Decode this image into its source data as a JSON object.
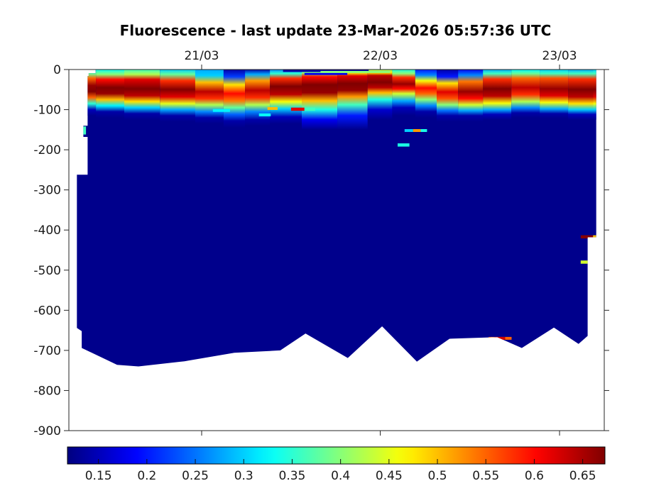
{
  "title": "Fluorescence - last update 23-Mar-2026 05:57:36 UTC",
  "chart_data": {
    "type": "heatmap",
    "title": "Fluorescence - last update 23-Mar-2026 05:57:36 UTC",
    "colormap": "jet",
    "grid": false,
    "x_axis": {
      "ticks": [
        {
          "label": "21/03",
          "f": 0.248
        },
        {
          "label": "22/03",
          "f": 0.5816
        },
        {
          "label": "23/03",
          "f": 0.9165
        }
      ],
      "tick_side": "top-and-bottom"
    },
    "y_axis": {
      "units": "m",
      "range": [
        -900,
        0
      ],
      "ticks": [
        {
          "label": "0",
          "d": 0
        },
        {
          "label": "-100",
          "d": 100
        },
        {
          "label": "-200",
          "d": 200
        },
        {
          "label": "-300",
          "d": 300
        },
        {
          "label": "-400",
          "d": 400
        },
        {
          "label": "-500",
          "d": 500
        },
        {
          "label": "-600",
          "d": 600
        },
        {
          "label": "-700",
          "d": 700
        },
        {
          "label": "-800",
          "d": 800
        },
        {
          "label": "-900",
          "d": 900
        }
      ]
    },
    "colorbar": {
      "orientation": "horizontal",
      "position": "bottom",
      "vmin": 0.118,
      "vmax": 0.673,
      "ticks": [
        0.15,
        0.2,
        0.25,
        0.3,
        0.35,
        0.4,
        0.45,
        0.5,
        0.55,
        0.6,
        0.65
      ]
    },
    "background_value": 0.125,
    "region_outline": [
      [
        0.05,
        0
      ],
      [
        0.985,
        0
      ],
      [
        0.985,
        418
      ],
      [
        0.969,
        418
      ],
      [
        0.969,
        664
      ],
      [
        0.952,
        684
      ],
      [
        0.906,
        643
      ],
      [
        0.846,
        694
      ],
      [
        0.8,
        667
      ],
      [
        0.711,
        671
      ],
      [
        0.65,
        728
      ],
      [
        0.585,
        640
      ],
      [
        0.521,
        719
      ],
      [
        0.442,
        658
      ],
      [
        0.395,
        700
      ],
      [
        0.309,
        706
      ],
      [
        0.216,
        727
      ],
      [
        0.13,
        740
      ],
      [
        0.09,
        736
      ],
      [
        0.024,
        694
      ],
      [
        0.024,
        652
      ],
      [
        0.015,
        644
      ],
      [
        0.015,
        262
      ],
      [
        0.035,
        262
      ],
      [
        0.035,
        168
      ],
      [
        0.027,
        168
      ],
      [
        0.027,
        140
      ],
      [
        0.035,
        140
      ],
      [
        0.035,
        16
      ],
      [
        0.037,
        16
      ],
      [
        0.037,
        9
      ],
      [
        0.05,
        9
      ]
    ],
    "profiles": [
      {
        "f": 0.031,
        "stops": [
          [
            0,
            0.3
          ],
          [
            10,
            0.38
          ],
          [
            22,
            0.55
          ],
          [
            40,
            0.66
          ],
          [
            55,
            0.68
          ],
          [
            70,
            0.55
          ],
          [
            85,
            0.35
          ],
          [
            100,
            0.15
          ],
          [
            115,
            0.125
          ]
        ]
      },
      {
        "f": 0.07,
        "stops": [
          [
            0,
            0.33
          ],
          [
            12,
            0.4
          ],
          [
            25,
            0.6
          ],
          [
            45,
            0.68
          ],
          [
            60,
            0.66
          ],
          [
            75,
            0.5
          ],
          [
            90,
            0.32
          ],
          [
            105,
            0.14
          ],
          [
            120,
            0.125
          ]
        ]
      },
      {
        "f": 0.137,
        "stops": [
          [
            0,
            0.36
          ],
          [
            12,
            0.42
          ],
          [
            25,
            0.62
          ],
          [
            48,
            0.68
          ],
          [
            65,
            0.64
          ],
          [
            80,
            0.48
          ],
          [
            95,
            0.3
          ],
          [
            110,
            0.14
          ],
          [
            125,
            0.125
          ]
        ]
      },
      {
        "f": 0.203,
        "stops": [
          [
            0,
            0.3
          ],
          [
            12,
            0.38
          ],
          [
            28,
            0.58
          ],
          [
            50,
            0.67
          ],
          [
            68,
            0.62
          ],
          [
            85,
            0.45
          ],
          [
            100,
            0.28
          ],
          [
            115,
            0.14
          ],
          [
            130,
            0.125
          ]
        ]
      },
      {
        "f": 0.269,
        "stops": [
          [
            0,
            0.28
          ],
          [
            15,
            0.3
          ],
          [
            32,
            0.5
          ],
          [
            55,
            0.64
          ],
          [
            72,
            0.58
          ],
          [
            88,
            0.42
          ],
          [
            105,
            0.26
          ],
          [
            120,
            0.14
          ],
          [
            135,
            0.125
          ]
        ]
      },
      {
        "f": 0.309,
        "stops": [
          [
            0,
            0.14
          ],
          [
            18,
            0.22
          ],
          [
            38,
            0.48
          ],
          [
            60,
            0.6
          ],
          [
            78,
            0.54
          ],
          [
            95,
            0.38
          ],
          [
            112,
            0.24
          ],
          [
            128,
            0.14
          ],
          [
            145,
            0.125
          ]
        ]
      },
      {
        "f": 0.349,
        "stops": [
          [
            0,
            0.14
          ],
          [
            12,
            0.28
          ],
          [
            28,
            0.52
          ],
          [
            52,
            0.64
          ],
          [
            70,
            0.58
          ],
          [
            88,
            0.42
          ],
          [
            105,
            0.26
          ],
          [
            125,
            0.14
          ],
          [
            140,
            0.125
          ]
        ]
      },
      {
        "f": 0.402,
        "stops": [
          [
            0,
            0.26
          ],
          [
            10,
            0.35
          ],
          [
            22,
            0.58
          ],
          [
            42,
            0.68
          ],
          [
            62,
            0.64
          ],
          [
            80,
            0.46
          ],
          [
            98,
            0.3
          ],
          [
            118,
            0.15
          ],
          [
            135,
            0.125
          ]
        ]
      },
      {
        "f": 0.468,
        "stops": [
          [
            0,
            0.33
          ],
          [
            8,
            0.4
          ],
          [
            18,
            0.6
          ],
          [
            38,
            0.68
          ],
          [
            58,
            0.66
          ],
          [
            78,
            0.5
          ],
          [
            100,
            0.34
          ],
          [
            125,
            0.18
          ],
          [
            150,
            0.125
          ]
        ]
      },
      {
        "f": 0.535,
        "stops": [
          [
            0,
            0.38
          ],
          [
            8,
            0.46
          ],
          [
            16,
            0.62
          ],
          [
            35,
            0.68
          ],
          [
            52,
            0.66
          ],
          [
            68,
            0.52
          ],
          [
            88,
            0.36
          ],
          [
            115,
            0.2
          ],
          [
            150,
            0.125
          ]
        ]
      },
      {
        "f": 0.581,
        "stops": [
          [
            0,
            0.4
          ],
          [
            8,
            0.48
          ],
          [
            15,
            0.64
          ],
          [
            32,
            0.68
          ],
          [
            45,
            0.64
          ],
          [
            58,
            0.5
          ],
          [
            75,
            0.34
          ],
          [
            100,
            0.16
          ],
          [
            125,
            0.125
          ]
        ]
      },
      {
        "f": 0.627,
        "stops": [
          [
            0,
            0.34
          ],
          [
            10,
            0.4
          ],
          [
            20,
            0.58
          ],
          [
            36,
            0.66
          ],
          [
            48,
            0.6
          ],
          [
            60,
            0.44
          ],
          [
            78,
            0.28
          ],
          [
            95,
            0.15
          ],
          [
            115,
            0.125
          ]
        ]
      },
      {
        "f": 0.667,
        "stops": [
          [
            0,
            0.2
          ],
          [
            14,
            0.26
          ],
          [
            28,
            0.46
          ],
          [
            46,
            0.6
          ],
          [
            60,
            0.55
          ],
          [
            75,
            0.4
          ],
          [
            90,
            0.26
          ],
          [
            105,
            0.14
          ],
          [
            120,
            0.125
          ]
        ]
      },
      {
        "f": 0.707,
        "stops": [
          [
            0,
            0.14
          ],
          [
            18,
            0.2
          ],
          [
            34,
            0.48
          ],
          [
            56,
            0.62
          ],
          [
            72,
            0.56
          ],
          [
            88,
            0.4
          ],
          [
            102,
            0.25
          ],
          [
            115,
            0.14
          ],
          [
            130,
            0.125
          ]
        ]
      },
      {
        "f": 0.747,
        "stops": [
          [
            0,
            0.18
          ],
          [
            14,
            0.26
          ],
          [
            30,
            0.54
          ],
          [
            55,
            0.66
          ],
          [
            72,
            0.6
          ],
          [
            88,
            0.44
          ],
          [
            102,
            0.28
          ],
          [
            115,
            0.14
          ],
          [
            130,
            0.125
          ]
        ]
      },
      {
        "f": 0.8,
        "stops": [
          [
            0,
            0.28
          ],
          [
            10,
            0.36
          ],
          [
            24,
            0.58
          ],
          [
            48,
            0.68
          ],
          [
            66,
            0.64
          ],
          [
            84,
            0.46
          ],
          [
            100,
            0.28
          ],
          [
            112,
            0.15
          ],
          [
            125,
            0.125
          ]
        ]
      },
      {
        "f": 0.853,
        "stops": [
          [
            0,
            0.32
          ],
          [
            10,
            0.38
          ],
          [
            22,
            0.55
          ],
          [
            45,
            0.64
          ],
          [
            62,
            0.58
          ],
          [
            80,
            0.42
          ],
          [
            95,
            0.26
          ],
          [
            108,
            0.14
          ],
          [
            120,
            0.125
          ]
        ]
      },
      {
        "f": 0.906,
        "stops": [
          [
            0,
            0.3
          ],
          [
            10,
            0.36
          ],
          [
            22,
            0.56
          ],
          [
            48,
            0.66
          ],
          [
            65,
            0.62
          ],
          [
            82,
            0.46
          ],
          [
            98,
            0.28
          ],
          [
            110,
            0.14
          ],
          [
            122,
            0.125
          ]
        ]
      },
      {
        "f": 0.959,
        "stops": [
          [
            0,
            0.28
          ],
          [
            10,
            0.36
          ],
          [
            24,
            0.58
          ],
          [
            50,
            0.68
          ],
          [
            68,
            0.64
          ],
          [
            85,
            0.48
          ],
          [
            100,
            0.3
          ],
          [
            112,
            0.15
          ],
          [
            125,
            0.125
          ]
        ]
      },
      {
        "f": 1.0,
        "stops": [
          [
            0,
            0.3
          ],
          [
            10,
            0.36
          ],
          [
            24,
            0.58
          ],
          [
            50,
            0.68
          ],
          [
            68,
            0.62
          ],
          [
            85,
            0.46
          ],
          [
            100,
            0.3
          ],
          [
            112,
            0.15
          ],
          [
            125,
            0.125
          ]
        ]
      }
    ],
    "streaks": [
      {
        "f1": 0.415,
        "f2": 0.44,
        "d": 99,
        "h": 8,
        "v": 0.62
      },
      {
        "f1": 0.44,
        "f2": 0.46,
        "d": 99,
        "h": 8,
        "v": 0.36
      },
      {
        "f1": 0.371,
        "f2": 0.39,
        "d": 97,
        "h": 7,
        "v": 0.5
      },
      {
        "f1": 0.355,
        "f2": 0.377,
        "d": 113,
        "h": 7,
        "v": 0.33
      },
      {
        "f1": 0.269,
        "f2": 0.301,
        "d": 102,
        "h": 7,
        "v": 0.32
      },
      {
        "f1": 0.627,
        "f2": 0.643,
        "d": 152,
        "h": 7,
        "v": 0.3
      },
      {
        "f1": 0.643,
        "f2": 0.657,
        "d": 152,
        "h": 7,
        "v": 0.52
      },
      {
        "f1": 0.657,
        "f2": 0.669,
        "d": 152,
        "h": 7,
        "v": 0.34
      },
      {
        "f1": 0.021,
        "f2": 0.032,
        "d": 152,
        "h": 20,
        "v": 0.36
      },
      {
        "f1": 0.956,
        "f2": 0.979,
        "d": 417,
        "h": 8,
        "v": 0.67
      },
      {
        "f1": 0.979,
        "f2": 0.985,
        "d": 417,
        "h": 8,
        "v": 0.5
      },
      {
        "f1": 0.956,
        "f2": 0.971,
        "d": 480,
        "h": 8,
        "v": 0.44
      },
      {
        "f1": 0.784,
        "f2": 0.827,
        "d": 670,
        "h": 7,
        "v": 0.55
      },
      {
        "f1": 0.795,
        "f2": 0.815,
        "d": 670,
        "h": 7,
        "v": 0.63
      },
      {
        "f1": 0.614,
        "f2": 0.636,
        "d": 188,
        "h": 8,
        "v": 0.34
      },
      {
        "f1": 0.4,
        "f2": 0.56,
        "d": 3,
        "h": 6,
        "v": 0.14
      },
      {
        "f1": 0.44,
        "f2": 0.52,
        "d": 11,
        "h": 5,
        "v": 0.18
      },
      {
        "f1": 0.47,
        "f2": 0.6,
        "d": 6,
        "h": 5,
        "v": 0.4
      }
    ],
    "colors": {
      "axis": "#262626",
      "tick_label": "#1a1a1a",
      "deep_water": "#00008c",
      "band_peak": "#8f0000"
    }
  }
}
